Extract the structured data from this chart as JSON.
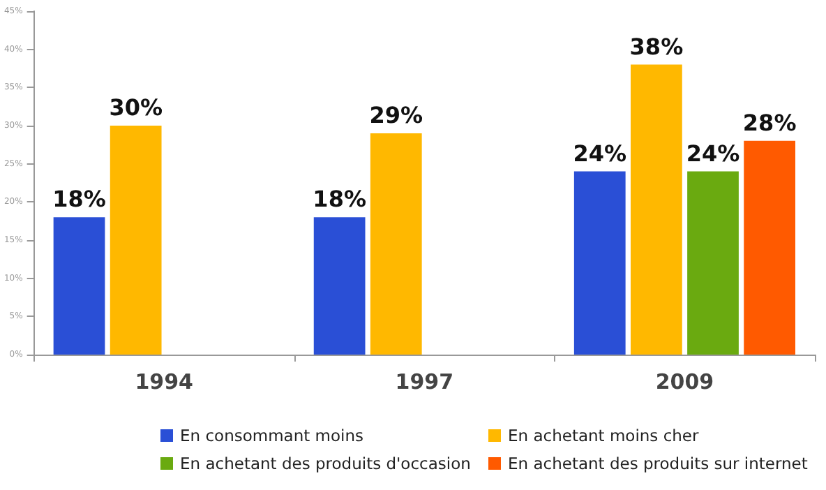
{
  "chart_data": {
    "type": "bar",
    "categories": [
      "1994",
      "1997",
      "2009"
    ],
    "series": [
      {
        "name": "En consommant moins",
        "color": "#2a4fd6",
        "values": [
          18,
          18,
          24
        ],
        "value_labels": [
          "18%",
          "18%",
          "24%"
        ]
      },
      {
        "name": "En achetant moins cher",
        "color": "#ffb800",
        "values": [
          30,
          29,
          38
        ],
        "value_labels": [
          "30%",
          "29%",
          "38%"
        ]
      },
      {
        "name": "En achetant des produits d'occasion",
        "color": "#6aaa10",
        "values": [
          null,
          null,
          24
        ],
        "value_labels": [
          null,
          null,
          "24%"
        ]
      },
      {
        "name": "En achetant des produits sur internet",
        "color": "#ff5a00",
        "values": [
          null,
          null,
          28
        ],
        "value_labels": [
          null,
          null,
          "28%"
        ]
      }
    ],
    "ylim": [
      0,
      45
    ],
    "yticks": [
      {
        "value": 0,
        "label": "0%"
      },
      {
        "value": 5,
        "label": "5%"
      },
      {
        "value": 10,
        "label": "10%"
      },
      {
        "value": 15,
        "label": "15%"
      },
      {
        "value": 20,
        "label": "20%"
      },
      {
        "value": 25,
        "label": "25%"
      },
      {
        "value": 30,
        "label": "30%"
      },
      {
        "value": 35,
        "label": "35%"
      },
      {
        "value": 40,
        "label": "40%"
      },
      {
        "value": 45,
        "label": "45%"
      }
    ],
    "grid": false,
    "legend": "bottom"
  }
}
